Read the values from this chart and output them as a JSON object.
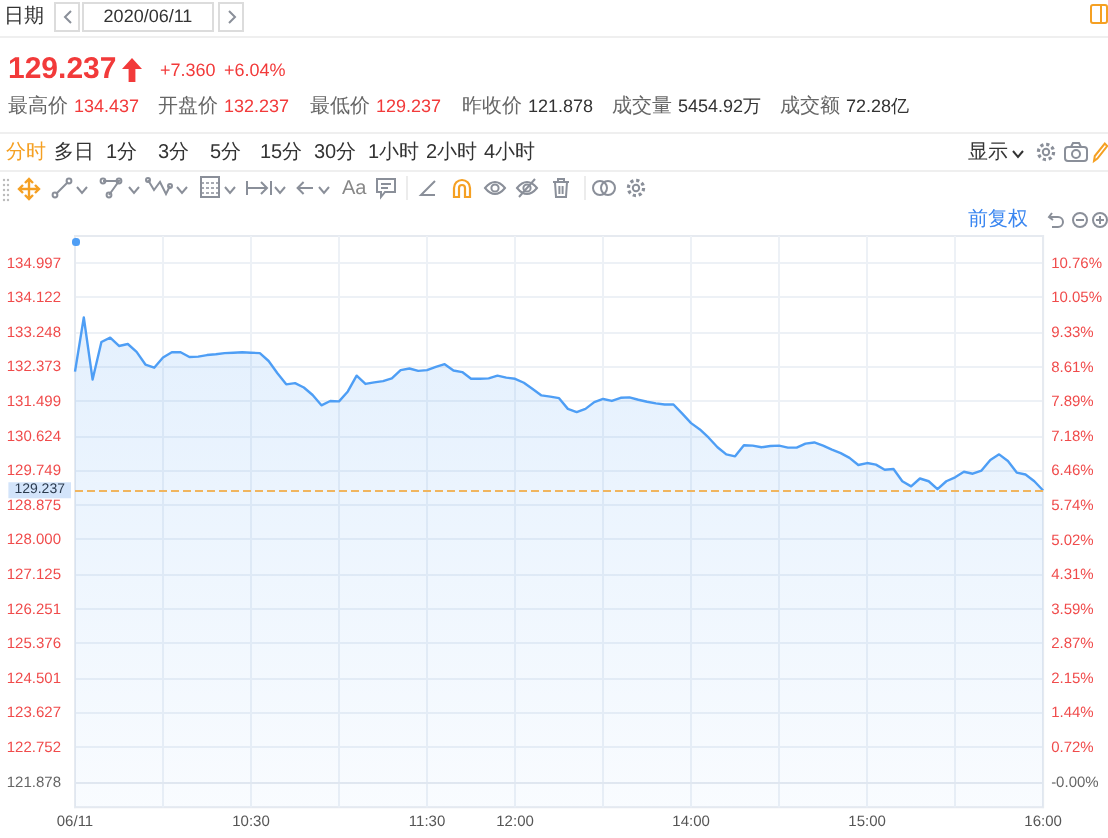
{
  "chart_data": [
    {
      "type": "other",
      "annotations": [
        "日期",
        "2020/06/11",
        "129.237",
        "+7.360",
        "+6.04%",
        "最高价",
        "134.437",
        "开盘价",
        "132.237",
        "最低价",
        "129.237",
        "昨收价",
        "121.878",
        "成交量",
        "5454.92万",
        "成交额",
        "72.28亿",
        "分时",
        "多日",
        "1分",
        "3分",
        "5分",
        "15分",
        "30分",
        "1小时",
        "2小时",
        "4小时",
        "显示",
        "Aa"
      ]
    },
    {
      "type": "area",
      "categories": [
        "06/11",
        null,
        null,
        null,
        null,
        null,
        null,
        null,
        null,
        null,
        null,
        null,
        null,
        null,
        null,
        null,
        null,
        null,
        null,
        null,
        "10:30",
        null,
        null,
        null,
        null,
        null,
        null,
        null,
        null,
        null,
        null,
        null,
        null,
        null,
        null,
        null,
        null,
        null,
        null,
        null,
        "11:30",
        null,
        null,
        null,
        null,
        null,
        null,
        null,
        null,
        null,
        "12:00",
        null,
        null,
        null,
        null,
        null,
        null,
        null,
        null,
        null,
        null,
        null,
        null,
        null,
        null,
        null,
        null,
        null,
        null,
        null,
        "14:00",
        null,
        null,
        null,
        null,
        null,
        null,
        null,
        null,
        null,
        null,
        null,
        null,
        null,
        null,
        null,
        null,
        null,
        null,
        null,
        "15:00",
        null,
        null,
        null,
        null,
        null,
        null,
        null,
        null,
        null,
        null,
        null,
        null,
        null,
        null,
        null,
        null,
        null,
        null,
        null,
        "16:00"
      ],
      "values": [
        132.24,
        133.61,
        132.04,
        132.99,
        133.1,
        132.89,
        132.94,
        132.74,
        132.42,
        132.34,
        132.6,
        132.73,
        132.73,
        132.61,
        132.62,
        132.66,
        132.68,
        132.71,
        132.72,
        132.73,
        132.72,
        132.71,
        132.51,
        132.2,
        131.92,
        131.95,
        131.84,
        131.65,
        131.39,
        131.5,
        131.49,
        131.74,
        132.14,
        131.93,
        131.97,
        132.0,
        132.07,
        132.28,
        132.32,
        132.26,
        132.28,
        132.36,
        132.43,
        132.27,
        132.23,
        132.06,
        132.06,
        132.07,
        132.14,
        132.09,
        132.06,
        131.96,
        131.8,
        131.64,
        131.61,
        131.57,
        131.3,
        131.22,
        131.3,
        131.47,
        131.55,
        131.5,
        131.58,
        131.59,
        131.53,
        131.48,
        131.44,
        131.41,
        131.41,
        131.18,
        130.94,
        130.78,
        130.57,
        130.33,
        130.15,
        130.1,
        130.38,
        130.37,
        130.33,
        130.36,
        130.37,
        130.32,
        130.32,
        130.42,
        130.45,
        130.37,
        130.27,
        130.18,
        130.06,
        129.88,
        129.93,
        129.89,
        129.76,
        129.78,
        129.47,
        129.34,
        129.54,
        129.47,
        129.27,
        129.47,
        129.57,
        129.71,
        129.66,
        129.74,
        130.01,
        130.15,
        129.98,
        129.69,
        129.64,
        129.47,
        129.237
      ],
      "color": "#4e9ef5",
      "ylim": [
        121.23,
        135.67
      ],
      "yticks": [
        121.878,
        122.752,
        123.627,
        124.501,
        125.376,
        126.251,
        127.125,
        {
          "value": 128,
          "label": "128.000"
        },
        128.875,
        129.749,
        130.624,
        131.499,
        132.373,
        133.248,
        134.122,
        134.997
      ],
      "y2lim": [
        -0.53,
        11.32
      ],
      "y2ticks": [
        {
          "value": 0,
          "label": "-0.00%"
        },
        {
          "value": 0.72,
          "label": "0.72%"
        },
        {
          "value": 1.44,
          "label": "1.44%"
        },
        {
          "value": 2.15,
          "label": "2.15%"
        },
        {
          "value": 2.87,
          "label": "2.87%"
        },
        {
          "value": 3.59,
          "label": "3.59%"
        },
        {
          "value": 4.31,
          "label": "4.31%"
        },
        {
          "value": 5.02,
          "label": "5.02%"
        },
        {
          "value": 5.74,
          "label": "5.74%"
        },
        {
          "value": 6.46,
          "label": "6.46%"
        },
        {
          "value": 7.18,
          "label": "7.18%"
        },
        {
          "value": 7.89,
          "label": "7.89%"
        },
        {
          "value": 8.61,
          "label": "8.61%"
        },
        {
          "value": 9.33,
          "label": "9.33%"
        },
        {
          "value": 10.05,
          "label": "10.05%"
        },
        {
          "value": 10.76,
          "label": "10.76%"
        }
      ],
      "ref_lines": [
        {
          "axis": "y",
          "value": 129.237,
          "label": "129.237",
          "color": "#f0b55f",
          "line_style": "dashed"
        }
      ],
      "grid": true,
      "marker": "none",
      "annotations": [
        "前复权"
      ]
    }
  ]
}
